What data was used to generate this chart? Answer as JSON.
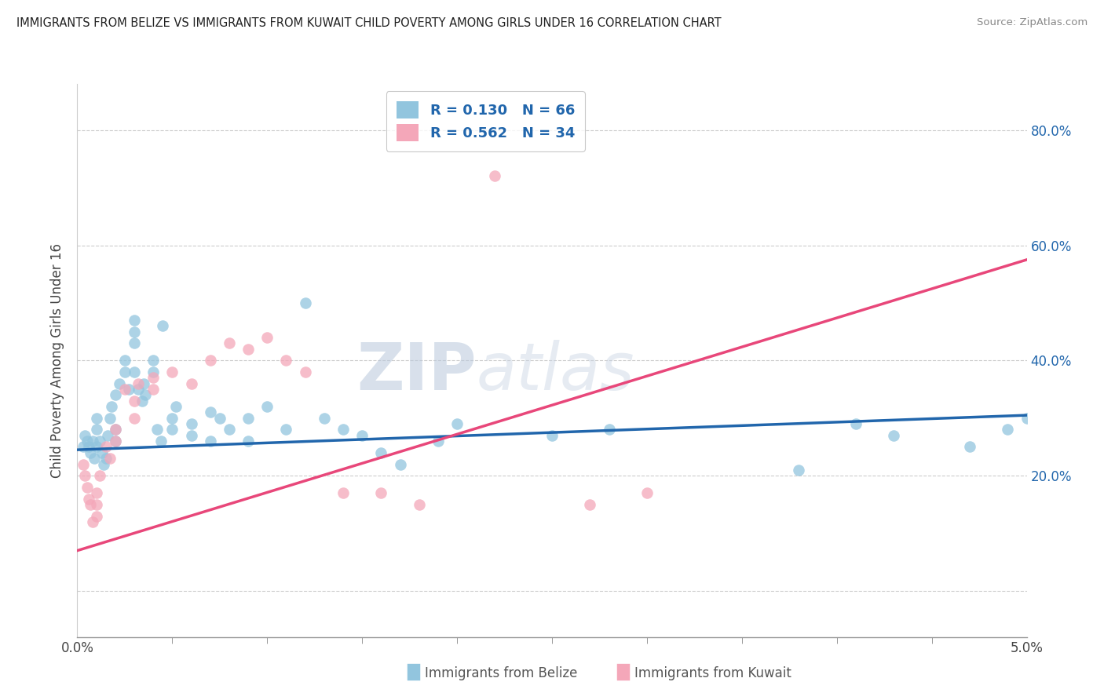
{
  "title": "IMMIGRANTS FROM BELIZE VS IMMIGRANTS FROM KUWAIT CHILD POVERTY AMONG GIRLS UNDER 16 CORRELATION CHART",
  "source": "Source: ZipAtlas.com",
  "ylabel": "Child Poverty Among Girls Under 16",
  "belize_R": 0.13,
  "belize_N": 66,
  "kuwait_R": 0.562,
  "kuwait_N": 34,
  "belize_color": "#92c5de",
  "kuwait_color": "#f4a7b9",
  "belize_line_color": "#2166ac",
  "kuwait_line_color": "#e8477a",
  "watermark_zip": "ZIP",
  "watermark_atlas": "atlas",
  "xlim": [
    0.0,
    0.05
  ],
  "ylim": [
    -0.08,
    0.88
  ],
  "ytick_vals": [
    0.0,
    0.2,
    0.4,
    0.6,
    0.8
  ],
  "ytick_labels": [
    "",
    "20.0%",
    "40.0%",
    "60.0%",
    "80.0%"
  ],
  "belize_line_x0": 0.0,
  "belize_line_y0": 0.245,
  "belize_line_x1": 0.05,
  "belize_line_y1": 0.305,
  "kuwait_line_x0": 0.0,
  "kuwait_line_y0": 0.07,
  "kuwait_line_x1": 0.05,
  "kuwait_line_y1": 0.575,
  "belize_x": [
    0.0003,
    0.0004,
    0.0005,
    0.0006,
    0.0007,
    0.0008,
    0.0009,
    0.001,
    0.001,
    0.001,
    0.0012,
    0.0013,
    0.0014,
    0.0015,
    0.0016,
    0.0017,
    0.0018,
    0.002,
    0.002,
    0.002,
    0.0022,
    0.0025,
    0.0025,
    0.0027,
    0.003,
    0.003,
    0.003,
    0.003,
    0.0032,
    0.0034,
    0.0035,
    0.0036,
    0.004,
    0.004,
    0.0042,
    0.0044,
    0.0045,
    0.005,
    0.005,
    0.0052,
    0.006,
    0.006,
    0.007,
    0.007,
    0.0075,
    0.008,
    0.009,
    0.009,
    0.01,
    0.011,
    0.012,
    0.013,
    0.014,
    0.015,
    0.016,
    0.017,
    0.019,
    0.02,
    0.025,
    0.028,
    0.038,
    0.041,
    0.043,
    0.047,
    0.049,
    0.05
  ],
  "belize_y": [
    0.25,
    0.27,
    0.26,
    0.25,
    0.24,
    0.26,
    0.23,
    0.25,
    0.28,
    0.3,
    0.26,
    0.24,
    0.22,
    0.23,
    0.27,
    0.3,
    0.32,
    0.34,
    0.28,
    0.26,
    0.36,
    0.38,
    0.4,
    0.35,
    0.43,
    0.45,
    0.47,
    0.38,
    0.35,
    0.33,
    0.36,
    0.34,
    0.4,
    0.38,
    0.28,
    0.26,
    0.46,
    0.3,
    0.28,
    0.32,
    0.27,
    0.29,
    0.31,
    0.26,
    0.3,
    0.28,
    0.3,
    0.26,
    0.32,
    0.28,
    0.5,
    0.3,
    0.28,
    0.27,
    0.24,
    0.22,
    0.26,
    0.29,
    0.27,
    0.28,
    0.21,
    0.29,
    0.27,
    0.25,
    0.28,
    0.3
  ],
  "kuwait_x": [
    0.0003,
    0.0004,
    0.0005,
    0.0006,
    0.0007,
    0.0008,
    0.001,
    0.001,
    0.001,
    0.0012,
    0.0015,
    0.0017,
    0.002,
    0.002,
    0.0025,
    0.003,
    0.003,
    0.0032,
    0.004,
    0.004,
    0.005,
    0.006,
    0.007,
    0.008,
    0.009,
    0.01,
    0.011,
    0.012,
    0.014,
    0.016,
    0.018,
    0.022,
    0.027,
    0.03
  ],
  "kuwait_y": [
    0.22,
    0.2,
    0.18,
    0.16,
    0.15,
    0.12,
    0.17,
    0.15,
    0.13,
    0.2,
    0.25,
    0.23,
    0.28,
    0.26,
    0.35,
    0.3,
    0.33,
    0.36,
    0.37,
    0.35,
    0.38,
    0.36,
    0.4,
    0.43,
    0.42,
    0.44,
    0.4,
    0.38,
    0.17,
    0.17,
    0.15,
    0.72,
    0.15,
    0.17
  ]
}
